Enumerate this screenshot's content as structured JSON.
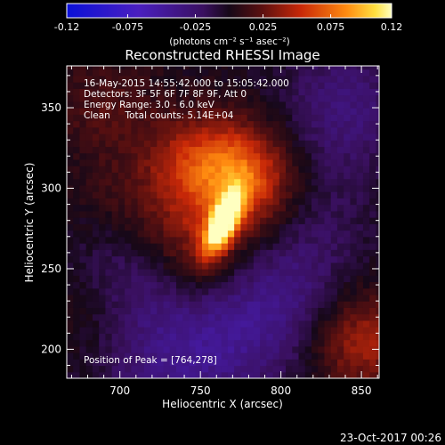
{
  "chart_data": {
    "type": "heatmap",
    "title": "Reconstructed RHESSI Image",
    "xlabel": "Heliocentric X (arcsec)",
    "ylabel": "Heliocentric Y (arcsec)",
    "xlim": [
      667,
      861
    ],
    "ylim": [
      182,
      376
    ],
    "x_ticks": [
      700,
      750,
      800,
      850
    ],
    "y_ticks": [
      200,
      250,
      300,
      350
    ],
    "colorbar": {
      "min": -0.12,
      "max": 0.12,
      "ticks": [
        "-0.12",
        "-0.075",
        "-0.025",
        "0.025",
        "0.075",
        "0.12"
      ],
      "tick_values": [
        -0.12,
        -0.075,
        -0.025,
        0.025,
        0.075,
        0.12
      ],
      "units": "(photons cm⁻² s⁻¹ asec⁻²)"
    },
    "annotations": [
      "16-May-2015 14:55:42.000 to 15:05:42.000",
      "Detectors: 3F 5F 6F 7F 8F 9F, Att 0",
      "Energy Range: 3.0 - 6.0 keV",
      "Clean     Total counts: 5.14E+04"
    ],
    "peak_label": "Position of Peak = [764,278]",
    "peak": [
      764,
      278
    ],
    "peak_value": 0.12,
    "source_sigma": [
      6,
      15
    ],
    "source_rotation_deg": -25,
    "secondary_sources": [
      {
        "x": 770,
        "y": 312,
        "value": 0.05
      },
      {
        "x": 748,
        "y": 265,
        "value": 0.035
      },
      {
        "x": 742,
        "y": 315,
        "value": 0.035
      },
      {
        "x": 785,
        "y": 300,
        "value": 0.03
      },
      {
        "x": 850,
        "y": 205,
        "value": 0.045
      },
      {
        "x": 690,
        "y": 350,
        "value": 0.02
      },
      {
        "x": 705,
        "y": 290,
        "value": 0.015
      },
      {
        "x": 680,
        "y": 225,
        "value": 0.015
      }
    ],
    "negative_regions": [
      {
        "x": 705,
        "y": 245,
        "value": -0.025
      },
      {
        "x": 800,
        "y": 230,
        "value": -0.03
      },
      {
        "x": 840,
        "y": 350,
        "value": -0.03
      },
      {
        "x": 720,
        "y": 190,
        "value": -0.02
      },
      {
        "x": 820,
        "y": 280,
        "value": -0.015
      },
      {
        "x": 760,
        "y": 200,
        "value": -0.03
      }
    ],
    "pixel_size_arcsec": 4
  },
  "date_stamp": "23-Oct-2017 00:26"
}
